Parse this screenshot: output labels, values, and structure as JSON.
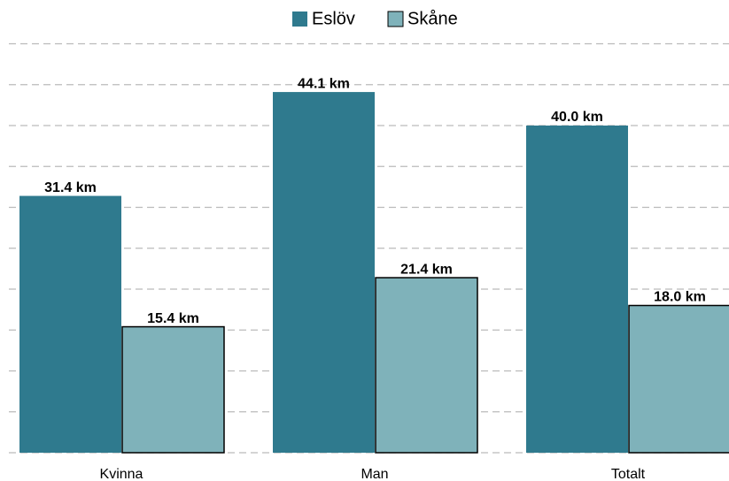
{
  "chart_data": {
    "type": "bar",
    "categories": [
      "Kvinna",
      "Man",
      "Totalt"
    ],
    "series": [
      {
        "name": "Eslöv",
        "color": "#2f7a8e",
        "values": [
          31.4,
          44.1,
          40.0
        ],
        "value_labels": [
          "31.4 km",
          "44.1 km",
          "40.0 km"
        ]
      },
      {
        "name": "Skåne",
        "color": "#7fb2ba",
        "values": [
          15.4,
          21.4,
          18.0
        ],
        "value_labels": [
          "15.4 km",
          "21.4 km",
          "18.0 km"
        ]
      }
    ],
    "ylim": [
      0,
      50
    ],
    "yticks": [
      0,
      5,
      10,
      15,
      20,
      25,
      30,
      35,
      40,
      45,
      50
    ],
    "grid": true,
    "legend": "top"
  }
}
